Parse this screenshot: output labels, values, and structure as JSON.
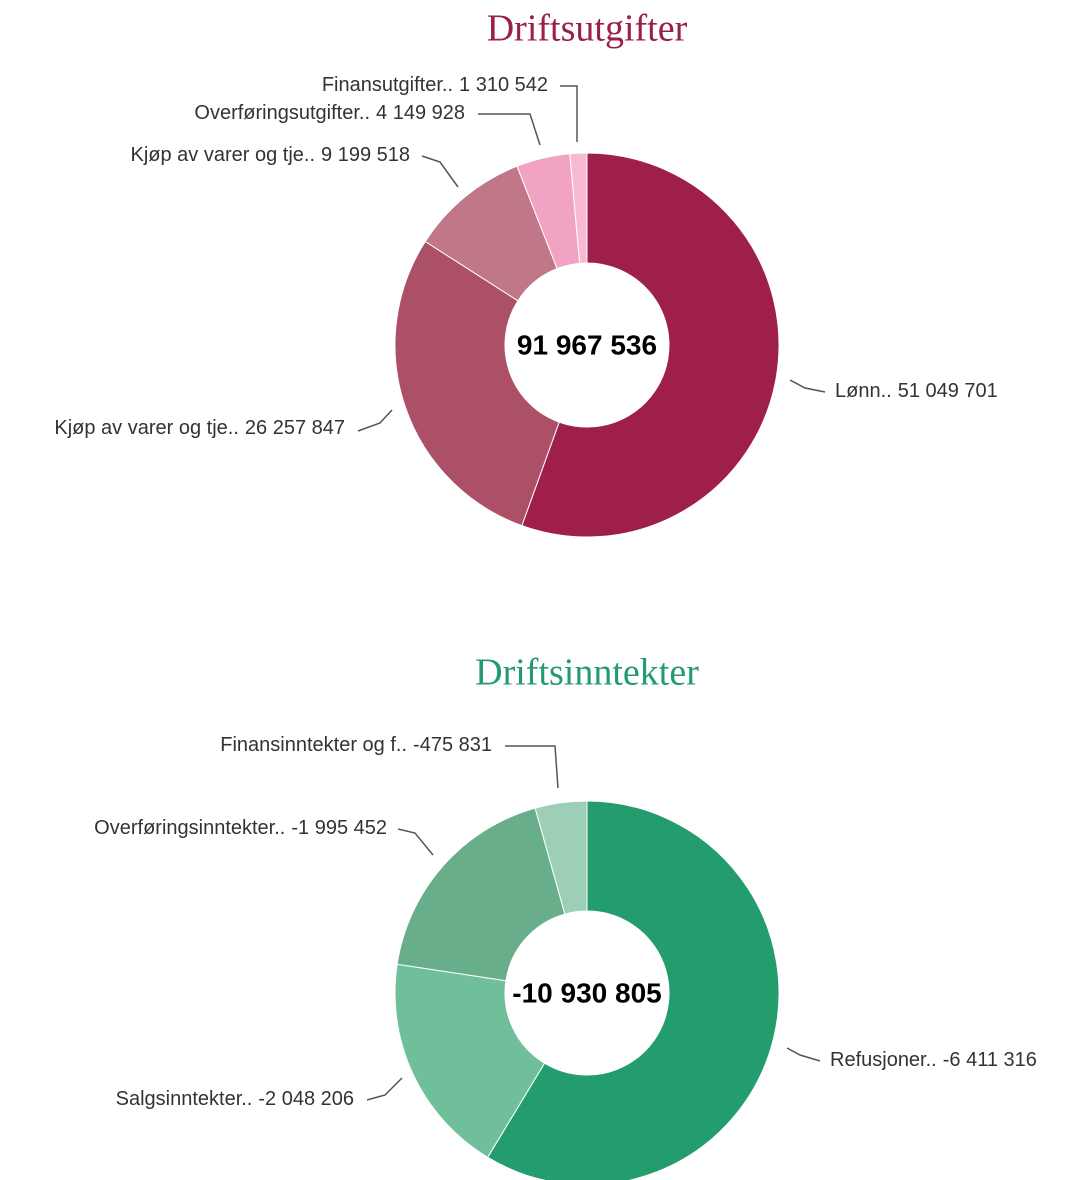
{
  "chart_data": [
    {
      "type": "donut",
      "title": "Driftsutgifter",
      "title_color": "#9b1f4b",
      "center_text": "91 967 536",
      "categories": [
        "Lønn..",
        "Kjøp av varer og tje..",
        "Kjøp av varer og tje..",
        "Overføringsutgifter..",
        "Finansutgifter.."
      ],
      "values": [
        51049701,
        26257847,
        9199518,
        4149928,
        1310542
      ],
      "value_labels": [
        "51 049 701",
        "26 257 847",
        "9 199 518",
        "4 149 928",
        "1 310 542"
      ],
      "colors": [
        "#9e1f4c",
        "#ac5068",
        "#c07788",
        "#f2a3c3",
        "#f7b9d3"
      ]
    },
    {
      "type": "donut",
      "title": "Driftsinntekter",
      "title_color": "#239b6e",
      "center_text": "-10 930 805",
      "categories": [
        "Refusjoner..",
        "Salgsinntekter..",
        "Overføringsinntekter..",
        "Finansinntekter og f.."
      ],
      "values": [
        -6411316,
        -2048206,
        -1995452,
        -475831
      ],
      "value_labels": [
        "-6 411 316",
        "-2 048 206",
        "-1 995 452",
        "-475 831"
      ],
      "colors": [
        "#239d6e",
        "#6fc09a",
        "#68ae8a",
        "#9ccfb5"
      ]
    }
  ]
}
